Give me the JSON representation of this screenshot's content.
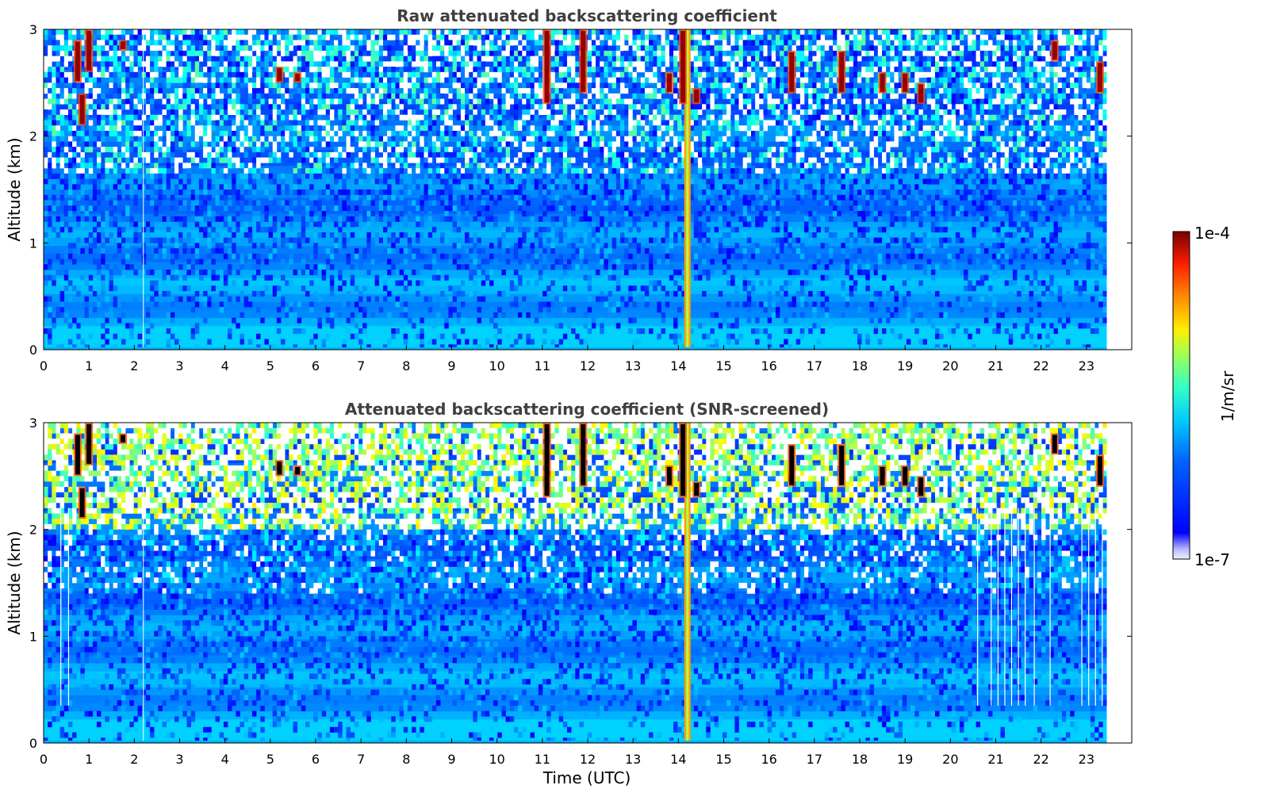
{
  "chart_data": [
    {
      "type": "heatmap",
      "title": "Raw attenuated backscattering coefficient",
      "xlabel": "",
      "ylabel": "Altitude (km)",
      "xlim": [
        0,
        24
      ],
      "ylim": [
        0,
        3
      ],
      "x_ticks": [
        "0",
        "1",
        "2",
        "3",
        "4",
        "5",
        "6",
        "7",
        "8",
        "9",
        "10",
        "11",
        "12",
        "13",
        "14",
        "15",
        "16",
        "17",
        "18",
        "19",
        "20",
        "21",
        "22",
        "23"
      ],
      "y_ticks": [
        "0",
        "1",
        "2",
        "3"
      ],
      "data_extent_x": [
        0,
        23.45
      ],
      "colormap": "jet",
      "color_range": [
        "1e-7",
        "1e-4"
      ],
      "colorbar_units": "1/m/sr",
      "dense_feature_time": 14.2,
      "cloud_features": [
        {
          "t": 0.75,
          "alt": [
            2.5,
            2.9
          ]
        },
        {
          "t": 0.85,
          "alt": [
            2.1,
            2.4
          ]
        },
        {
          "t": 1.0,
          "alt": [
            2.6,
            3.0
          ]
        },
        {
          "t": 1.75,
          "alt": [
            2.8,
            2.9
          ]
        },
        {
          "t": 5.2,
          "alt": [
            2.5,
            2.65
          ]
        },
        {
          "t": 5.6,
          "alt": [
            2.5,
            2.6
          ]
        },
        {
          "t": 11.1,
          "alt": [
            2.3,
            3.0
          ]
        },
        {
          "t": 11.9,
          "alt": [
            2.4,
            3.0
          ]
        },
        {
          "t": 13.8,
          "alt": [
            2.4,
            2.6
          ]
        },
        {
          "t": 14.1,
          "alt": [
            2.3,
            3.0
          ]
        },
        {
          "t": 14.4,
          "alt": [
            2.3,
            2.45
          ]
        },
        {
          "t": 16.5,
          "alt": [
            2.4,
            2.8
          ]
        },
        {
          "t": 17.6,
          "alt": [
            2.4,
            2.8
          ]
        },
        {
          "t": 18.5,
          "alt": [
            2.4,
            2.6
          ]
        },
        {
          "t": 19.0,
          "alt": [
            2.4,
            2.6
          ]
        },
        {
          "t": 19.35,
          "alt": [
            2.3,
            2.5
          ]
        },
        {
          "t": 22.3,
          "alt": [
            2.7,
            2.9
          ]
        },
        {
          "t": 23.3,
          "alt": [
            2.4,
            2.7
          ]
        }
      ]
    },
    {
      "type": "heatmap",
      "title": "Attenuated backscattering coefficient (SNR-screened)",
      "xlabel": "Time (UTC)",
      "ylabel": "Altitude (km)",
      "xlim": [
        0,
        24
      ],
      "ylim": [
        0,
        3
      ],
      "x_ticks": [
        "0",
        "1",
        "2",
        "3",
        "4",
        "5",
        "6",
        "7",
        "8",
        "9",
        "10",
        "11",
        "12",
        "13",
        "14",
        "15",
        "16",
        "17",
        "18",
        "19",
        "20",
        "21",
        "22",
        "23"
      ],
      "y_ticks": [
        "0",
        "1",
        "2",
        "3"
      ],
      "data_extent_x": [
        0,
        23.45
      ],
      "colormap": "jet",
      "color_range": [
        "1e-7",
        "1e-4"
      ],
      "colorbar_units": "1/m/sr",
      "dense_feature_time": 14.2,
      "screened_threshold_altitude": 2.0,
      "cloud_features": [
        {
          "t": 0.75,
          "alt": [
            2.5,
            2.9
          ]
        },
        {
          "t": 0.85,
          "alt": [
            2.1,
            2.4
          ]
        },
        {
          "t": 1.0,
          "alt": [
            2.6,
            3.0
          ]
        },
        {
          "t": 1.75,
          "alt": [
            2.8,
            2.9
          ]
        },
        {
          "t": 5.2,
          "alt": [
            2.5,
            2.65
          ]
        },
        {
          "t": 5.6,
          "alt": [
            2.5,
            2.6
          ]
        },
        {
          "t": 11.1,
          "alt": [
            2.3,
            3.0
          ]
        },
        {
          "t": 11.9,
          "alt": [
            2.4,
            3.0
          ]
        },
        {
          "t": 13.8,
          "alt": [
            2.4,
            2.6
          ]
        },
        {
          "t": 14.1,
          "alt": [
            2.3,
            3.0
          ]
        },
        {
          "t": 14.4,
          "alt": [
            2.3,
            2.45
          ]
        },
        {
          "t": 16.5,
          "alt": [
            2.4,
            2.8
          ]
        },
        {
          "t": 17.6,
          "alt": [
            2.4,
            2.8
          ]
        },
        {
          "t": 18.5,
          "alt": [
            2.4,
            2.6
          ]
        },
        {
          "t": 19.0,
          "alt": [
            2.4,
            2.6
          ]
        },
        {
          "t": 19.35,
          "alt": [
            2.3,
            2.5
          ]
        },
        {
          "t": 22.3,
          "alt": [
            2.7,
            2.9
          ]
        },
        {
          "t": 23.3,
          "alt": [
            2.4,
            2.7
          ]
        }
      ],
      "missing_profile_times": [
        0.38,
        0.55,
        20.6,
        20.9,
        21.05,
        21.2,
        21.35,
        21.5,
        21.65,
        21.85,
        22.2,
        22.9,
        23.05,
        23.2,
        23.35
      ]
    }
  ],
  "colorbar": {
    "max_label": "1e-4",
    "min_label": "1e-7",
    "units_label": "1/m/sr"
  }
}
